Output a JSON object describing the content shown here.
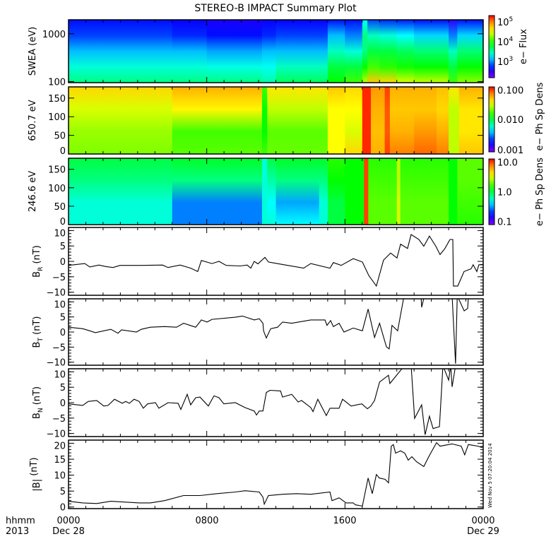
{
  "title": "STEREO-B IMPACT Summary Plot",
  "timestamp": "Wed Nov  5 07:20:04 2014",
  "x_axis": {
    "range_hours": [
      0,
      24
    ],
    "ticks": [
      {
        "h": 0,
        "label": "0000"
      },
      {
        "h": 8,
        "label": "0800"
      },
      {
        "h": 16,
        "label": "1600"
      },
      {
        "h": 24,
        "label": "0000"
      }
    ],
    "format_label": "hhmm",
    "year_label": "2013",
    "start_date": "Dec 28",
    "end_date": "Dec 29"
  },
  "colormap": [
    "#7f00ff",
    "#0000ff",
    "#00ffff",
    "#00ff00",
    "#ffff00",
    "#ff9900",
    "#ff0000"
  ],
  "chart_data": [
    {
      "type": "heatmap",
      "ylabel": "SWEA (eV)",
      "yscale": "log",
      "ylim": [
        95,
        1960
      ],
      "yticks": [
        {
          "v": 100,
          "label": "100"
        },
        {
          "v": 1000,
          "label": "1000"
        }
      ],
      "colorbar": {
        "label": "e− Flux",
        "ticks": [
          {
            "f": 0.9,
            "base": "10",
            "exp": "5"
          },
          {
            "f": 0.58,
            "base": "10",
            "exp": "4"
          },
          {
            "f": 0.26,
            "base": "10",
            "exp": "3"
          }
        ]
      },
      "cols": [
        {
          "t": 0,
          "v": [
            0.16,
            0.2,
            0.3,
            0.38,
            0.45
          ]
        },
        {
          "t": 6,
          "v": [
            0.14,
            0.18,
            0.3,
            0.38,
            0.45
          ]
        },
        {
          "t": 8,
          "v": [
            0.12,
            0.16,
            0.28,
            0.37,
            0.45
          ]
        },
        {
          "t": 11.2,
          "v": [
            0.14,
            0.18,
            0.3,
            0.36,
            0.42
          ]
        },
        {
          "t": 12,
          "v": [
            0.14,
            0.2,
            0.3,
            0.4,
            0.48
          ]
        },
        {
          "t": 15,
          "v": [
            0.16,
            0.3,
            0.4,
            0.5,
            0.55
          ]
        },
        {
          "t": 16,
          "v": [
            0.16,
            0.25,
            0.38,
            0.5,
            0.6
          ]
        },
        {
          "t": 17.0,
          "v": [
            0.35,
            0.45,
            0.45,
            0.55,
            0.7
          ]
        },
        {
          "t": 17.3,
          "v": [
            0.2,
            0.4,
            0.5,
            0.6,
            0.82
          ]
        },
        {
          "t": 18,
          "v": [
            0.18,
            0.38,
            0.5,
            0.58,
            0.8
          ]
        },
        {
          "t": 19,
          "v": [
            0.17,
            0.35,
            0.48,
            0.56,
            0.72
          ]
        },
        {
          "t": 20,
          "v": [
            0.16,
            0.32,
            0.46,
            0.55,
            0.7
          ]
        },
        {
          "t": 22,
          "v": [
            0.1,
            0.25,
            0.4,
            0.5,
            0.6
          ]
        },
        {
          "t": 22.5,
          "v": [
            0.16,
            0.32,
            0.46,
            0.55,
            0.66
          ]
        }
      ]
    },
    {
      "type": "heatmap",
      "ylabel": "650.7 eV",
      "ylim": [
        0,
        180
      ],
      "yticks": [
        {
          "v": 0,
          "label": "0"
        },
        {
          "v": 50,
          "label": "50"
        },
        {
          "v": 100,
          "label": "100"
        },
        {
          "v": 150,
          "label": "150"
        }
      ],
      "colorbar": {
        "label": "e− Ph Sp Dens",
        "ticks": [
          {
            "f": 0.95,
            "text": "0.100"
          },
          {
            "f": 0.5,
            "text": "0.010"
          },
          {
            "f": 0.03,
            "text": "0.001"
          }
        ]
      },
      "cols": [
        {
          "t": 0,
          "v": [
            0.8,
            0.72,
            0.67,
            0.65
          ]
        },
        {
          "t": 6,
          "v": [
            0.85,
            0.76,
            0.6,
            0.62
          ]
        },
        {
          "t": 11.2,
          "v": [
            0.6,
            0.55,
            0.55,
            0.6
          ]
        },
        {
          "t": 11.5,
          "v": [
            0.78,
            0.7,
            0.62,
            0.63
          ]
        },
        {
          "t": 15,
          "v": [
            0.82,
            0.75,
            0.75,
            0.75
          ]
        },
        {
          "t": 16,
          "v": [
            0.8,
            0.75,
            0.72,
            0.8
          ]
        },
        {
          "t": 17.0,
          "v": [
            0.97,
            0.97,
            0.97,
            0.97
          ]
        },
        {
          "t": 17.5,
          "v": [
            0.88,
            0.85,
            0.83,
            0.85
          ]
        },
        {
          "t": 18.3,
          "v": [
            0.95,
            0.93,
            0.93,
            0.95
          ]
        },
        {
          "t": 18.6,
          "v": [
            0.85,
            0.82,
            0.85,
            0.9
          ]
        },
        {
          "t": 20,
          "v": [
            0.85,
            0.82,
            0.88,
            0.92
          ]
        },
        {
          "t": 21.3,
          "v": [
            0.83,
            0.8,
            0.85,
            0.9
          ]
        },
        {
          "t": 22,
          "v": [
            0.78,
            0.7,
            0.7,
            0.7
          ]
        },
        {
          "t": 22.6,
          "v": [
            0.85,
            0.78,
            0.78,
            0.82
          ]
        }
      ]
    },
    {
      "type": "heatmap",
      "ylabel": "246.6 eV",
      "ylim": [
        0,
        180
      ],
      "yticks": [
        {
          "v": 0,
          "label": "0"
        },
        {
          "v": 50,
          "label": "50"
        },
        {
          "v": 100,
          "label": "100"
        },
        {
          "v": 150,
          "label": "150"
        }
      ],
      "colorbar": {
        "label": "e− Ph Sp Dens",
        "ticks": [
          {
            "f": 0.95,
            "text": "10.0"
          },
          {
            "f": 0.5,
            "text": "1.0"
          },
          {
            "f": 0.05,
            "text": "0.1"
          }
        ]
      },
      "cols": [
        {
          "t": 0,
          "v": [
            0.5,
            0.45,
            0.38,
            0.38
          ]
        },
        {
          "t": 6,
          "v": [
            0.52,
            0.45,
            0.25,
            0.25
          ]
        },
        {
          "t": 11.2,
          "v": [
            0.38,
            0.38,
            0.38,
            0.38
          ]
        },
        {
          "t": 11.5,
          "v": [
            0.5,
            0.42,
            0.35,
            0.38
          ]
        },
        {
          "t": 12,
          "v": [
            0.52,
            0.45,
            0.28,
            0.35
          ]
        },
        {
          "t": 14.5,
          "v": [
            0.52,
            0.45,
            0.38,
            0.38
          ]
        },
        {
          "t": 15,
          "v": [
            0.58,
            0.55,
            0.5,
            0.5
          ]
        },
        {
          "t": 16,
          "v": [
            0.55,
            0.55,
            0.55,
            0.55
          ]
        },
        {
          "t": 17.1,
          "v": [
            0.95,
            0.95,
            0.95,
            0.95
          ]
        },
        {
          "t": 17.35,
          "v": [
            0.58,
            0.6,
            0.62,
            0.62
          ]
        },
        {
          "t": 19.0,
          "v": [
            0.7,
            0.7,
            0.72,
            0.72
          ]
        },
        {
          "t": 19.2,
          "v": [
            0.58,
            0.6,
            0.62,
            0.62
          ]
        },
        {
          "t": 22,
          "v": [
            0.55,
            0.55,
            0.55,
            0.55
          ]
        },
        {
          "t": 22.5,
          "v": [
            0.62,
            0.62,
            0.6,
            0.58
          ]
        }
      ]
    },
    {
      "type": "line",
      "ylabel_main": "B",
      "ylabel_sub": "R",
      "ylabel_unit": " (nT)",
      "ylim": [
        -11,
        11
      ],
      "yticks": [
        {
          "v": -10,
          "label": "−10"
        },
        {
          "v": -5,
          "label": "−5"
        },
        {
          "v": 0,
          "label": "0"
        },
        {
          "v": 5,
          "label": "5"
        },
        {
          "v": 10,
          "label": "10"
        }
      ],
      "x": [
        0,
        0.94,
        1.23,
        1.76,
        2.17,
        2.58,
        2.98,
        4.21,
        5.44,
        5.76,
        6.46,
        7.07,
        7.48,
        7.69,
        8.3,
        8.71,
        9.12,
        9.93,
        10.34,
        10.55,
        10.75,
        10.96,
        11.37,
        11.57,
        12.39,
        13.61,
        14.02,
        15.13,
        15.33,
        15.78,
        16.48,
        17.01,
        17.38,
        17.82,
        18.23,
        18.64,
        19.01,
        19.22,
        19.62,
        19.83,
        20.28,
        20.56,
        20.89,
        21.26,
        21.5,
        21.79,
        22.08,
        22.24,
        22.28,
        22.53,
        22.89,
        23.3,
        23.42,
        23.63,
        23.75,
        24
      ],
      "y": [
        -1.3,
        -0.7,
        -1.8,
        -1.2,
        -1.7,
        -2,
        -1.3,
        -1.3,
        -1.2,
        -2,
        -1.2,
        -2.2,
        -3.3,
        0.3,
        -0.7,
        0,
        -1.3,
        -1.5,
        -1.2,
        -2.2,
        0,
        -0.8,
        1.3,
        -0.2,
        -1,
        -2.2,
        -0.7,
        -2.2,
        -0.4,
        -1.3,
        0.9,
        -0.2,
        -4.6,
        -8,
        0.4,
        2.7,
        1.1,
        5.6,
        4.2,
        8.7,
        7.1,
        4.9,
        8.2,
        4.9,
        2.2,
        4.2,
        7.1,
        7.1,
        -8,
        -8,
        -3.3,
        -2.4,
        -1.1,
        -3.3,
        -1.1,
        -1.1
      ]
    },
    {
      "type": "line",
      "ylabel_main": "B",
      "ylabel_sub": "T",
      "ylabel_unit": " (nT)",
      "ylim": [
        -11,
        11
      ],
      "yticks": [
        {
          "v": -10,
          "label": "−10"
        },
        {
          "v": -5,
          "label": "−5"
        },
        {
          "v": 0,
          "label": "0"
        },
        {
          "v": 5,
          "label": "5"
        },
        {
          "v": 10,
          "label": "10"
        }
      ],
      "x": [
        0,
        0.82,
        1.23,
        1.55,
        2.45,
        2.86,
        3.07,
        3.93,
        4.21,
        4.74,
        5.56,
        6.25,
        6.66,
        7.36,
        7.69,
        8.02,
        8.3,
        9.65,
        10.06,
        10.75,
        11.04,
        11.25,
        11.29,
        11.45,
        11.7,
        12.1,
        12.39,
        12.92,
        14.02,
        14.84,
        14.96,
        15.17,
        15.33,
        15.66,
        15.94,
        16.48,
        17.01,
        17.34,
        17.71,
        18.0,
        18.4,
        18.56,
        18.72,
        19.05,
        19.42,
        19.8,
        20.4,
        20.44,
        20.6,
        22.2,
        22.4,
        22.5,
        22.9,
        23.1,
        23.15,
        24
      ],
      "y": [
        1.6,
        1.1,
        0.4,
        -0.2,
        0.9,
        -0.4,
        0.7,
        0,
        0.9,
        1.6,
        1.8,
        1.6,
        2.9,
        1.6,
        4,
        3.3,
        4.2,
        4.9,
        5.3,
        4,
        4.4,
        2.9,
        0.4,
        -2,
        1.1,
        1.6,
        3.3,
        2.9,
        4,
        4,
        2.2,
        3.8,
        1.8,
        2.9,
        0,
        1.3,
        0.4,
        7.6,
        -1.8,
        2.9,
        -4.9,
        -5.6,
        2.2,
        0.4,
        12,
        12,
        12,
        8.2,
        12,
        12,
        -10.5,
        12,
        7,
        7.8,
        12,
        12
      ]
    },
    {
      "type": "line",
      "ylabel_main": "B",
      "ylabel_sub": "N",
      "ylabel_unit": " (nT)",
      "ylim": [
        -11,
        11
      ],
      "yticks": [
        {
          "v": -10,
          "label": "−10"
        },
        {
          "v": -5,
          "label": "−5"
        },
        {
          "v": 0,
          "label": "0"
        },
        {
          "v": 5,
          "label": "5"
        },
        {
          "v": 10,
          "label": "10"
        }
      ],
      "x": [
        0,
        0.82,
        1.14,
        1.63,
        2.04,
        2.29,
        2.66,
        3.11,
        3.31,
        3.52,
        3.8,
        4.09,
        4.33,
        4.58,
        5.03,
        5.23,
        5.76,
        6.34,
        6.5,
        6.87,
        7.07,
        7.36,
        7.61,
        8.09,
        8.42,
        8.71,
        8.99,
        9.65,
        10.22,
        10.75,
        10.88,
        11.04,
        11.25,
        11.45,
        11.66,
        12.27,
        12.39,
        12.92,
        13.29,
        13.49,
        14.02,
        14.15,
        14.43,
        14.92,
        15.13,
        15.66,
        15.86,
        16.36,
        16.97,
        17.3,
        17.5,
        17.71,
        18.0,
        18.52,
        18.6,
        19.44,
        19.83,
        20.03,
        20.44,
        20.64,
        20.89,
        21.1,
        21.47,
        21.67,
        22.0,
        22.12,
        22.2,
        22.4
      ],
      "y": [
        -0.4,
        -0.9,
        0.4,
        0.7,
        -1.1,
        -0.9,
        1.1,
        -0.2,
        0.4,
        -0.2,
        1.1,
        0.4,
        -1.8,
        -0.4,
        0,
        -1.8,
        0,
        -0.2,
        -2.2,
        2.7,
        -0.7,
        1.6,
        1.8,
        -1.1,
        2.2,
        1.6,
        -0.4,
        0,
        -1.6,
        -2.7,
        -4,
        -2.7,
        -2.7,
        3.3,
        4,
        3.8,
        1.8,
        2.7,
        0.2,
        0.7,
        -1.6,
        -2.9,
        1.1,
        -4.2,
        -1.8,
        -1.8,
        1.1,
        -1.1,
        -0.4,
        -2,
        -1.1,
        0.7,
        6.7,
        8.9,
        6.2,
        12,
        12,
        -5.1,
        -0.7,
        -10.4,
        -4.4,
        -8.4,
        -7.8,
        12,
        7.3,
        12,
        5.1,
        12
      ]
    },
    {
      "type": "line",
      "ylabel_main": "|B|",
      "ylabel_sub": "",
      "ylabel_unit": " (nT)",
      "ylim": [
        -0.5,
        21
      ],
      "yticks": [
        {
          "v": 0,
          "label": "0"
        },
        {
          "v": 5,
          "label": "5"
        },
        {
          "v": 10,
          "label": "10"
        },
        {
          "v": 15,
          "label": "15"
        },
        {
          "v": 20,
          "label": "20"
        }
      ],
      "x": [
        0,
        0.82,
        1.63,
        2.45,
        4.09,
        4.74,
        5.56,
        6.66,
        7.61,
        8.59,
        9.65,
        10.22,
        11.04,
        11.25,
        11.33,
        11.57,
        12.39,
        13.2,
        14.02,
        15.13,
        15.25,
        15.66,
        16.07,
        16.48,
        16.6,
        17.01,
        17.34,
        17.58,
        17.82,
        17.99,
        18.32,
        18.52,
        18.68,
        18.8,
        18.93,
        19.22,
        19.46,
        19.66,
        19.87,
        20.15,
        20.56,
        20.89,
        21.3,
        21.5,
        22.2,
        22.73,
        22.93,
        23.14,
        23.71,
        23.91,
        24
      ],
      "y": [
        1.8,
        1.3,
        1.1,
        1.8,
        1.3,
        1.3,
        2.0,
        3.6,
        3.6,
        4.2,
        4.7,
        5.1,
        4.7,
        3.1,
        0.9,
        3.6,
        4.0,
        4.2,
        4.0,
        4.7,
        2.0,
        2.9,
        1.3,
        1.3,
        0.7,
        0.3,
        9.1,
        4.2,
        10.2,
        9.1,
        8.7,
        7.6,
        19.1,
        19.6,
        16.9,
        17.6,
        16.9,
        14.7,
        15.8,
        14.2,
        12.7,
        16.2,
        20.2,
        19.1,
        19.8,
        19.1,
        16.4,
        19.6,
        19.1,
        18.7,
        19
      ]
    }
  ]
}
